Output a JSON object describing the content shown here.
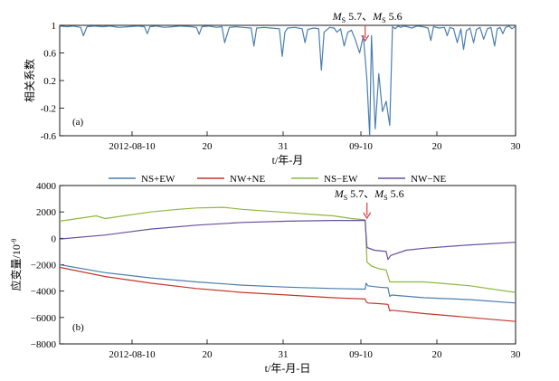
{
  "chart_data": [
    {
      "id": "a",
      "type": "line",
      "panel_label": "(a)",
      "ylabel": "相关系数",
      "xlabel": "t/年-月",
      "ylim": [
        -0.6,
        1.0
      ],
      "yticks": [
        1,
        0.6,
        0.2,
        -0.2,
        -0.6
      ],
      "ytick_labels": [
        "1",
        "0.6",
        "0.2",
        "-0.2",
        "-0.6"
      ],
      "xlim": [
        0,
        50
      ],
      "xticks": [
        {
          "x": 6,
          "label": "2012-08-10"
        },
        {
          "x": 16,
          "label": "20"
        },
        {
          "x": 27,
          "label": "31"
        },
        {
          "x": 37,
          "label": "09-10"
        },
        {
          "x": 47,
          "label": "20"
        },
        {
          "x": 57,
          "label": "30"
        }
      ],
      "annotation": {
        "x": 33.5,
        "main": "M",
        "sub": "S",
        "text1": " 5.7、",
        "text2": " 5.6"
      },
      "color": "#4a7fb0",
      "series": [
        {
          "x": [
            0,
            0.8,
            1.5,
            2.3,
            2.6,
            3.0,
            3.8,
            4.7,
            5.5,
            6.5,
            7.6,
            8.6,
            9.3,
            9.6,
            9.9,
            10.6,
            11.5,
            12.4,
            13.2,
            14.4,
            15.0,
            15.3,
            15.6,
            16.4,
            17.2,
            17.8,
            18.1,
            18.6,
            19.3,
            20.1,
            21.0,
            21.3,
            21.6,
            22.4,
            23.2,
            24.1,
            24.4,
            24.7,
            25.0,
            25.8,
            26.6,
            26.9,
            27.2,
            27.9,
            28.4,
            28.7,
            29.0,
            29.6,
            30.1,
            30.4,
            30.8,
            31.2,
            31.6,
            32.0,
            32.4,
            32.9,
            33.3,
            33.7,
            34.0,
            34.2,
            34.6,
            35.0,
            35.4,
            35.8,
            36.2,
            36.5,
            36.8,
            37.1,
            37.4,
            37.7,
            38.1,
            38.6,
            39.2,
            39.8,
            40.4,
            40.7,
            41.0,
            41.6,
            42.2,
            42.5,
            42.8,
            43.2,
            43.6,
            44.0,
            44.3,
            44.6,
            45.0,
            45.4,
            45.7,
            46.1,
            46.5,
            46.9,
            47.3,
            47.7,
            48.0,
            48.3,
            48.6,
            48.9,
            49.3,
            49.6,
            50.0
          ],
          "y": [
            0.99,
            0.98,
            0.99,
            0.97,
            0.85,
            0.98,
            0.99,
            0.98,
            0.99,
            0.97,
            0.98,
            0.99,
            0.98,
            0.88,
            0.98,
            0.99,
            0.97,
            0.98,
            0.99,
            0.98,
            0.97,
            0.87,
            0.98,
            0.99,
            0.97,
            0.98,
            0.75,
            0.97,
            0.98,
            0.97,
            0.96,
            0.7,
            0.96,
            0.97,
            0.96,
            0.95,
            0.55,
            0.9,
            0.96,
            0.97,
            0.95,
            0.75,
            0.94,
            0.96,
            0.95,
            0.35,
            0.9,
            0.97,
            0.96,
            0.9,
            0.95,
            0.7,
            0.9,
            0.93,
            0.8,
            0.6,
            0.85,
            0.2,
            -0.6,
            0.85,
            -0.5,
            0.3,
            -0.25,
            -0.1,
            -0.45,
            0.98,
            0.95,
            0.99,
            0.97,
            0.99,
            0.98,
            0.96,
            0.99,
            0.98,
            0.96,
            0.78,
            0.98,
            0.96,
            0.97,
            0.85,
            0.97,
            0.95,
            0.75,
            0.95,
            0.65,
            0.92,
            0.96,
            0.75,
            0.94,
            0.97,
            0.8,
            0.95,
            0.97,
            0.7,
            0.95,
            0.97,
            0.88,
            0.97,
            0.99,
            0.95,
            0.99
          ]
        }
      ]
    },
    {
      "id": "b",
      "type": "line",
      "panel_label": "(b)",
      "ylabel": "应变量/10",
      "ylabel_exp": "-9",
      "xlabel": "t/年-月-日",
      "ylim": [
        -8000,
        4000
      ],
      "yticks": [
        4000,
        2000,
        0,
        -2000,
        -4000,
        -6000,
        -8000
      ],
      "ytick_labels": [
        "4000",
        "2000",
        "0",
        "−2000",
        "−4000",
        "−6000",
        "−8000"
      ],
      "xlim": [
        0,
        50
      ],
      "xticks": [
        {
          "x": 6,
          "label": "2012-08-10"
        },
        {
          "x": 16,
          "label": "20"
        },
        {
          "x": 27,
          "label": "31"
        },
        {
          "x": 37,
          "label": "09-10"
        },
        {
          "x": 47,
          "label": "20"
        },
        {
          "x": 57,
          "label": "30"
        }
      ],
      "annotation": {
        "x": 33.7,
        "main": "M",
        "sub": "S",
        "text1": " 5.7、",
        "text2": " 5.6"
      },
      "series": [
        {
          "name": "NS+EW",
          "color": "#4a7fb0",
          "x": [
            0,
            5,
            10,
            15,
            20,
            25,
            30,
            33.5,
            33.6,
            33.8,
            35,
            36,
            36.2,
            36.4,
            40,
            45,
            50
          ],
          "y": [
            -2000,
            -2600,
            -3000,
            -3300,
            -3550,
            -3700,
            -3800,
            -3850,
            -3400,
            -3600,
            -3700,
            -3750,
            -4400,
            -4300,
            -4500,
            -4650,
            -4900
          ]
        },
        {
          "name": "NW+NE",
          "color": "#c0392b",
          "x": [
            0,
            5,
            10,
            15,
            20,
            25,
            30,
            33.5,
            33.6,
            33.8,
            35,
            36,
            36.2,
            36.4,
            40,
            45,
            50
          ],
          "y": [
            -2200,
            -2900,
            -3400,
            -3800,
            -4100,
            -4300,
            -4500,
            -4600,
            -4800,
            -4900,
            -4950,
            -5000,
            -5500,
            -5450,
            -5700,
            -6000,
            -6300
          ]
        },
        {
          "name": "NS−EW",
          "color": "#8cb840",
          "x": [
            0,
            3,
            4,
            5,
            7,
            10,
            13,
            15,
            18,
            20,
            24,
            28,
            30,
            32,
            33.5,
            33.6,
            33.7,
            34.2,
            35,
            35.8,
            36.2,
            37.5,
            40,
            45,
            50
          ],
          "y": [
            1300,
            1600,
            1700,
            1500,
            1700,
            2000,
            2200,
            2300,
            2350,
            2200,
            2000,
            1800,
            1700,
            1500,
            1400,
            0,
            -1800,
            -2100,
            -2300,
            -2400,
            -3300,
            -3300,
            -3300,
            -3600,
            -4100
          ]
        },
        {
          "name": "NW−NE",
          "color": "#6a4f9e",
          "x": [
            0,
            5,
            10,
            15,
            20,
            25,
            30,
            33.5,
            33.6,
            33.7,
            34.5,
            35.8,
            36.0,
            36.3,
            38,
            40,
            45,
            50
          ],
          "y": [
            -50,
            250,
            700,
            1000,
            1200,
            1300,
            1350,
            1350,
            300,
            -700,
            -900,
            -1000,
            -1600,
            -1300,
            -900,
            -750,
            -500,
            -300
          ]
        }
      ]
    }
  ]
}
